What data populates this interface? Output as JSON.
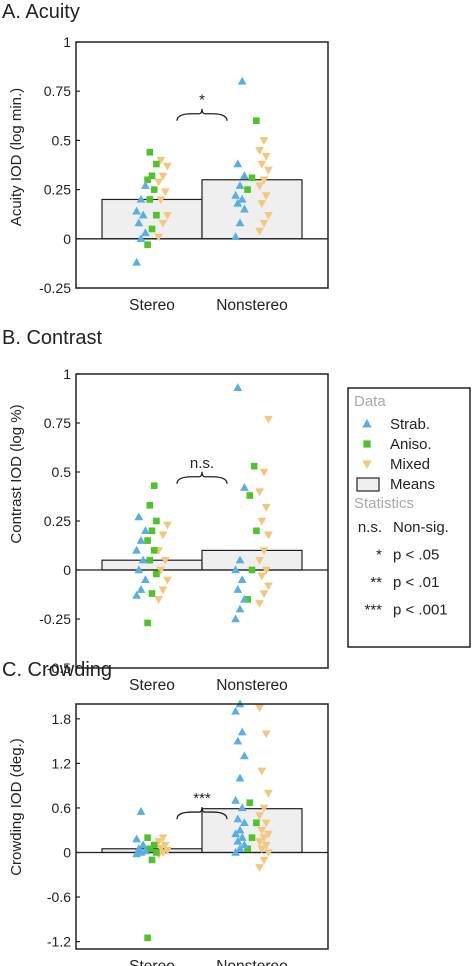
{
  "colors": {
    "strab": "#5aaee6",
    "aniso": "#4fc428",
    "mixed": "#f5c77c",
    "bar_fill": "#efefef",
    "bar_stroke": "#222222",
    "legend_heading": "#aaaaaa"
  },
  "legend": {
    "data_heading": "Data",
    "items": [
      {
        "label": "Strab.",
        "marker": "triangle-up",
        "color_key": "strab"
      },
      {
        "label": "Aniso.",
        "marker": "square",
        "color_key": "aniso"
      },
      {
        "label": "Mixed",
        "marker": "triangle-down",
        "color_key": "mixed"
      },
      {
        "label": "Means",
        "marker": "bar",
        "color_key": "bar_fill"
      }
    ],
    "stats_heading": "Statistics",
    "stats": [
      {
        "symbol": "n.s.",
        "text": "Non-sig."
      },
      {
        "symbol": "*",
        "text": "p < .05"
      },
      {
        "symbol": "**",
        "text": "p < .01"
      },
      {
        "symbol": "***",
        "text": "p < .001"
      }
    ]
  },
  "chart_data": [
    {
      "type": "bar",
      "title": "A. Acuity",
      "ylabel": "Acuity IOD (log min.)",
      "categories": [
        "Stereo",
        "Nonstereo"
      ],
      "means": [
        0.2,
        0.3
      ],
      "ylim": [
        -0.25,
        1.0
      ],
      "yticks": [
        -0.25,
        0,
        0.25,
        0.5,
        0.75,
        1
      ],
      "ytick_labels": [
        "-0.25",
        "0",
        "0.25",
        "0.5",
        "0.75",
        "1"
      ],
      "significance": "*",
      "points": {
        "Stereo": {
          "strab": [
            -0.12,
            0.0,
            0.03,
            0.08,
            0.12,
            0.14,
            0.2,
            0.27
          ],
          "aniso": [
            -0.03,
            0.05,
            0.12,
            0.2,
            0.25,
            0.3,
            0.32,
            0.38,
            0.44
          ],
          "mixed": [
            0.01,
            0.08,
            0.12,
            0.2,
            0.24,
            0.29,
            0.32,
            0.37,
            0.4
          ]
        },
        "Nonstereo": {
          "strab": [
            0.01,
            0.08,
            0.15,
            0.18,
            0.2,
            0.22,
            0.27,
            0.32,
            0.38,
            0.8
          ],
          "aniso": [
            0.25,
            0.31,
            0.6
          ],
          "mixed": [
            0.04,
            0.08,
            0.12,
            0.18,
            0.22,
            0.27,
            0.3,
            0.35,
            0.38,
            0.42,
            0.45,
            0.5
          ]
        }
      }
    },
    {
      "type": "bar",
      "title": "B. Contrast",
      "ylabel": "Contrast IOD (log %)",
      "categories": [
        "Stereo",
        "Nonstereo"
      ],
      "means": [
        0.05,
        0.1
      ],
      "ylim": [
        -0.5,
        1.0
      ],
      "yticks": [
        -0.5,
        -0.25,
        0,
        0.25,
        0.5,
        0.75,
        1
      ],
      "ytick_labels": [
        "-0.5",
        "-0.25",
        "0",
        "0.25",
        "0.5",
        "0.75",
        "1"
      ],
      "significance": "n.s.",
      "points": {
        "Stereo": {
          "strab": [
            -0.13,
            -0.1,
            -0.05,
            0.0,
            0.05,
            0.1,
            0.15,
            0.2,
            0.27
          ],
          "aniso": [
            -0.27,
            -0.12,
            -0.02,
            0.05,
            0.1,
            0.15,
            0.2,
            0.25,
            0.33,
            0.43
          ],
          "mixed": [
            -0.15,
            -0.1,
            -0.05,
            0.0,
            0.05,
            0.1,
            0.18,
            0.23
          ]
        },
        "Nonstereo": {
          "strab": [
            -0.25,
            -0.2,
            -0.15,
            -0.1,
            -0.05,
            0.0,
            0.05,
            0.42,
            0.93
          ],
          "aniso": [
            -0.15,
            0.0,
            0.2,
            0.38,
            0.53
          ],
          "mixed": [
            -0.17,
            -0.12,
            -0.08,
            -0.03,
            0.0,
            0.05,
            0.1,
            0.18,
            0.25,
            0.32,
            0.4,
            0.5,
            0.77
          ]
        }
      }
    },
    {
      "type": "bar",
      "title": "C. Crowding",
      "ylabel": "Crowding IOD (deg.)",
      "categories": [
        "Stereo",
        "Nonstereo"
      ],
      "means": [
        0.05,
        0.59
      ],
      "ylim": [
        -1.3,
        2.0
      ],
      "yticks": [
        -1.2,
        -0.6,
        0,
        0.6,
        1.2,
        1.8
      ],
      "ytick_labels": [
        "-1.2",
        "-0.6",
        "0",
        "0.6",
        "1.2",
        "1.8"
      ],
      "significance": "***",
      "points": {
        "Stereo": {
          "strab": [
            -0.02,
            0.0,
            0.02,
            0.05,
            0.1,
            0.18,
            0.55
          ],
          "aniso": [
            -1.15,
            -0.1,
            0.0,
            0.05,
            0.1,
            0.2
          ],
          "mixed": [
            -0.03,
            0.0,
            0.03,
            0.06,
            0.1,
            0.15,
            0.2
          ]
        },
        "Nonstereo": {
          "strab": [
            0.0,
            0.05,
            0.1,
            0.15,
            0.2,
            0.25,
            0.3,
            0.4,
            0.45,
            0.6,
            0.7,
            1.0,
            1.3,
            1.5,
            1.62,
            1.9,
            2.0
          ],
          "aniso": [
            0.05,
            0.2,
            0.4,
            0.67
          ],
          "mixed": [
            -0.2,
            -0.1,
            0.0,
            0.05,
            0.1,
            0.15,
            0.2,
            0.25,
            0.3,
            0.4,
            0.5,
            0.6,
            0.8,
            1.1,
            1.6,
            1.95
          ]
        }
      }
    }
  ]
}
